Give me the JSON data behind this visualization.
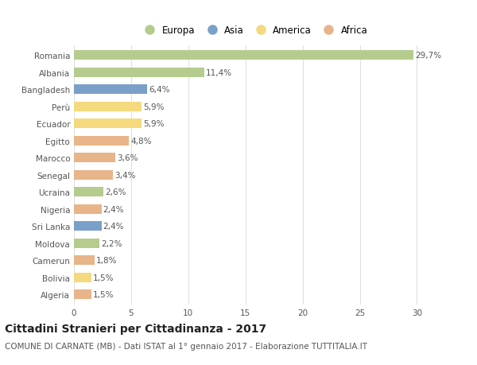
{
  "countries": [
    "Romania",
    "Albania",
    "Bangladesh",
    "Perù",
    "Ecuador",
    "Egitto",
    "Marocco",
    "Senegal",
    "Ucraina",
    "Nigeria",
    "Sri Lanka",
    "Moldova",
    "Camerun",
    "Bolivia",
    "Algeria"
  ],
  "values": [
    29.7,
    11.4,
    6.4,
    5.9,
    5.9,
    4.8,
    3.6,
    3.4,
    2.6,
    2.4,
    2.4,
    2.2,
    1.8,
    1.5,
    1.5
  ],
  "labels": [
    "29,7%",
    "11,4%",
    "6,4%",
    "5,9%",
    "5,9%",
    "4,8%",
    "3,6%",
    "3,4%",
    "2,6%",
    "2,4%",
    "2,4%",
    "2,2%",
    "1,8%",
    "1,5%",
    "1,5%"
  ],
  "continents": [
    "Europa",
    "Europa",
    "Asia",
    "America",
    "America",
    "Africa",
    "Africa",
    "Africa",
    "Europa",
    "Africa",
    "Asia",
    "Europa",
    "Africa",
    "America",
    "Africa"
  ],
  "colors": {
    "Europa": "#b5cc8e",
    "Asia": "#7a9fc9",
    "America": "#f5d97e",
    "Africa": "#e8b48a"
  },
  "legend_order": [
    "Europa",
    "Asia",
    "America",
    "Africa"
  ],
  "xlim": [
    0,
    31.5
  ],
  "xticks": [
    0,
    5,
    10,
    15,
    20,
    25,
    30
  ],
  "title": "Cittadini Stranieri per Cittadinanza - 2017",
  "subtitle": "COMUNE DI CARNATE (MB) - Dati ISTAT al 1° gennaio 2017 - Elaborazione TUTTITALIA.IT",
  "bg_color": "#ffffff",
  "grid_color": "#e0e0e0",
  "bar_height": 0.55,
  "title_fontsize": 10,
  "subtitle_fontsize": 7.5,
  "label_fontsize": 7.5,
  "tick_fontsize": 7.5,
  "legend_fontsize": 8.5
}
